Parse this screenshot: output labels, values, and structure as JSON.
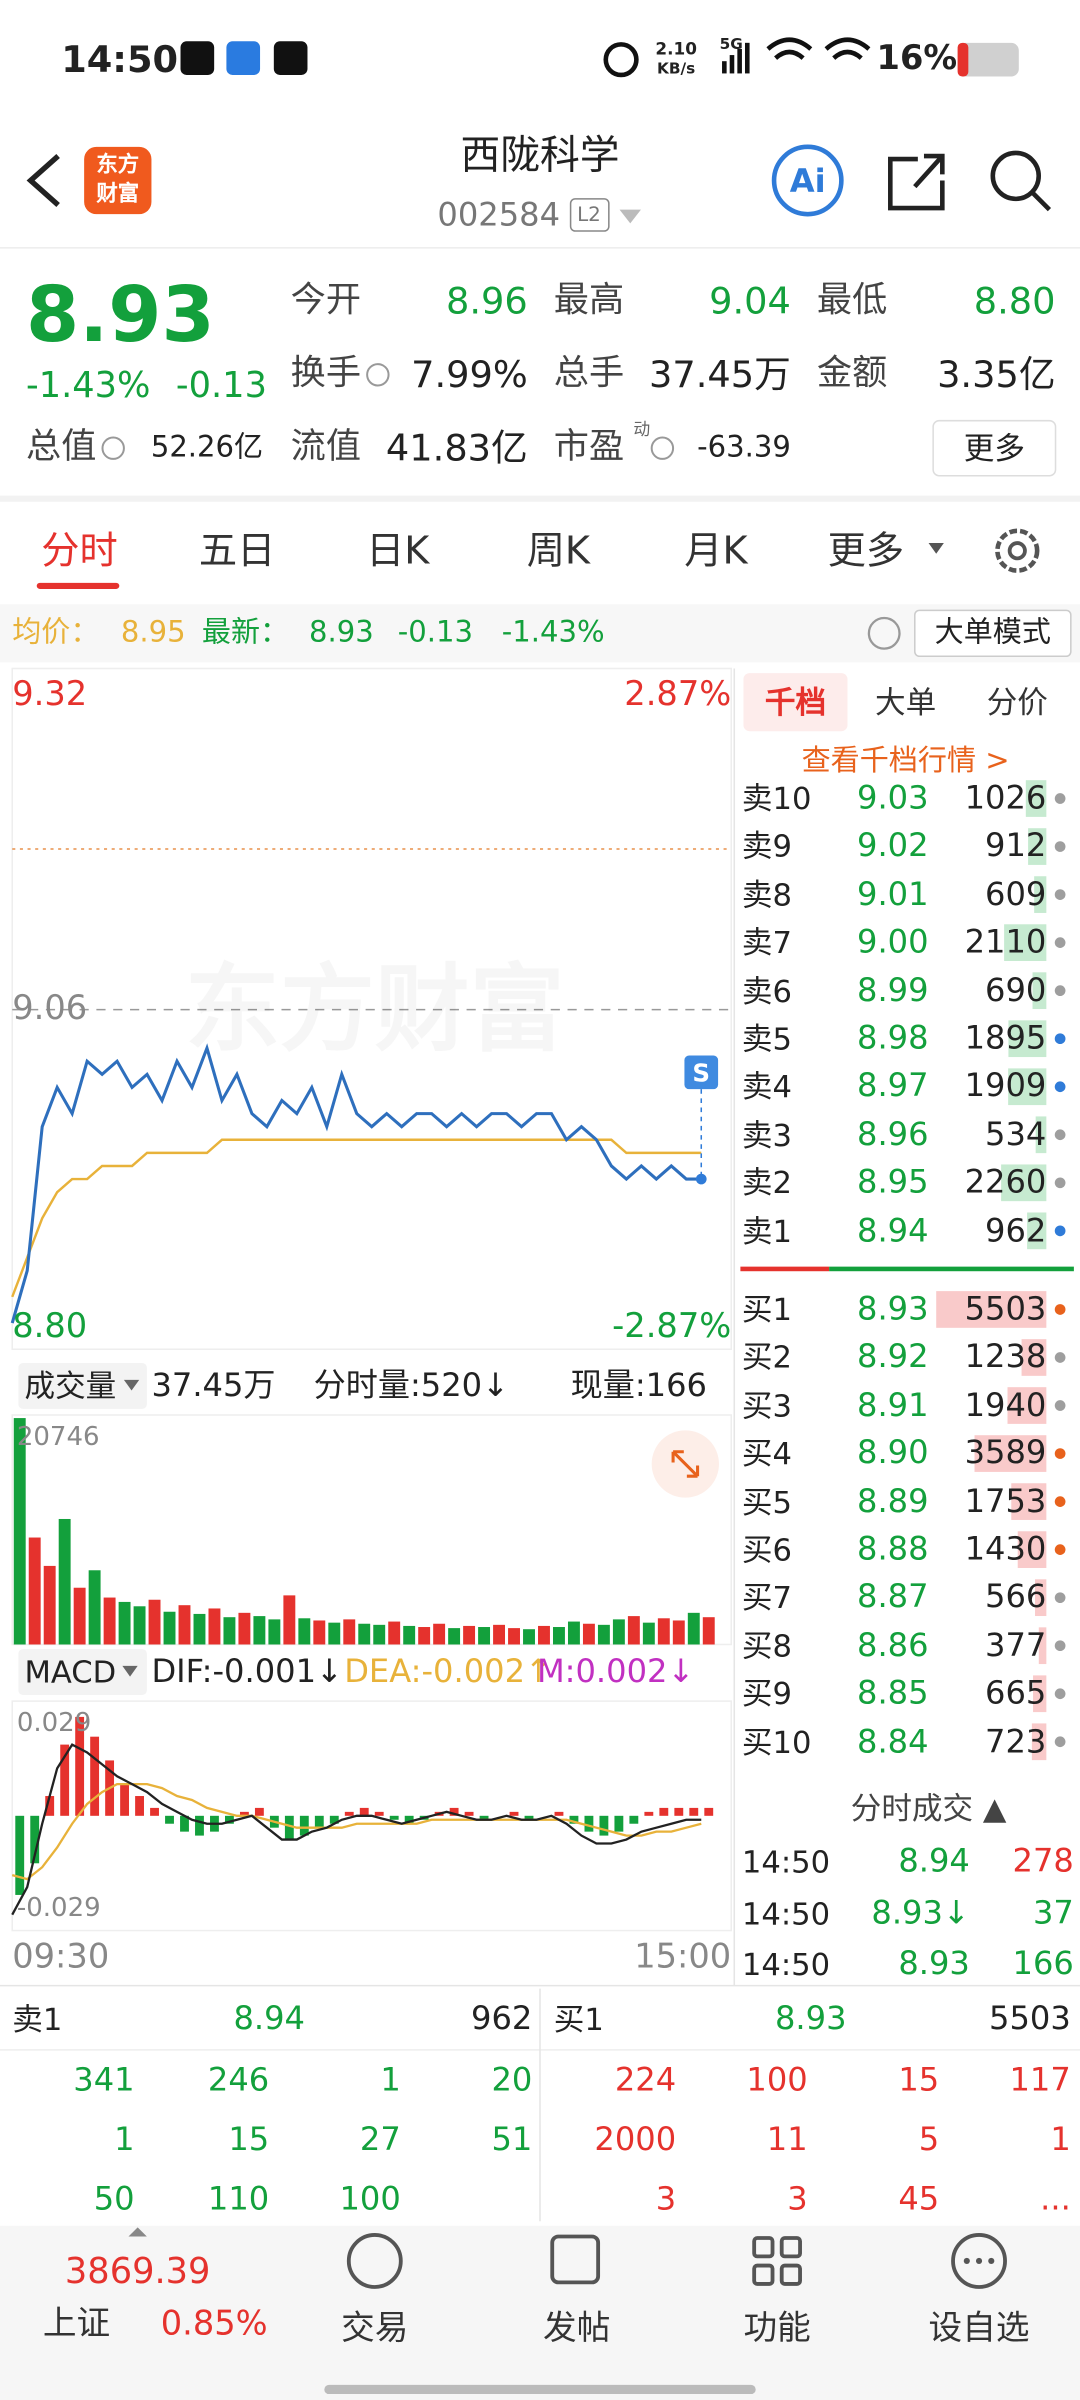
{
  "status_bar": {
    "time": "14:50",
    "net_speed": "2.10",
    "net_unit": "KB/s",
    "network": "5G",
    "battery": "16%"
  },
  "header": {
    "logo": [
      "东方",
      "财富"
    ],
    "title": "西陇科学",
    "code": "002584",
    "level": "L2",
    "ai": "Ai"
  },
  "colors": {
    "up": "#e5322d",
    "down": "#13a03c",
    "text": "#222222",
    "avg": "#e8b23a",
    "line": "#2e6fbd"
  },
  "quote": {
    "price": "8.93",
    "change_pct": "-1.43%",
    "change": "-0.13",
    "more": "更多",
    "stats": [
      {
        "label": "今开",
        "value": "8.96",
        "color": "down"
      },
      {
        "label": "最高",
        "value": "9.04",
        "color": "down"
      },
      {
        "label": "最低",
        "value": "8.80",
        "color": "down"
      },
      {
        "label": "换手",
        "value": "7.99%",
        "color": "text"
      },
      {
        "label": "总手",
        "value": "37.45万",
        "color": "text"
      },
      {
        "label": "金额",
        "value": "3.35亿",
        "color": "text"
      },
      {
        "label": "总值",
        "value": "52.26亿",
        "color": "text"
      },
      {
        "label": "流值",
        "value": "41.83亿",
        "color": "text"
      },
      {
        "label": "市盈",
        "sup": "动",
        "value": "-63.39",
        "color": "text"
      }
    ]
  },
  "tabs": {
    "items": [
      "分时",
      "五日",
      "日K",
      "周K",
      "月K",
      "更多"
    ],
    "active": 0
  },
  "info_bar": {
    "avg_label": "均价：",
    "avg": "8.95",
    "latest_label": "最新：",
    "latest": "8.93",
    "change": "-0.13",
    "change_pct": "-1.43%",
    "mode": "大单模式"
  },
  "intraday": {
    "watermark": "东方财富",
    "top": "9.32",
    "top_pct": "2.87%",
    "mid": "9.06",
    "bottom": "8.80",
    "bottom_pct": "-2.87%",
    "marker": "S",
    "start_time": "09:30",
    "end_time": "15:00",
    "prices": [
      8.82,
      8.86,
      8.97,
      9.0,
      8.98,
      9.02,
      9.01,
      9.02,
      9.0,
      9.01,
      8.99,
      9.02,
      9.0,
      9.03,
      8.99,
      9.01,
      8.98,
      8.97,
      8.99,
      8.98,
      9.0,
      8.97,
      9.01,
      8.98,
      8.97,
      8.98,
      8.97,
      8.98,
      8.98,
      8.97,
      8.98,
      8.97,
      8.98,
      8.98,
      8.97,
      8.98,
      8.98,
      8.96,
      8.97,
      8.96,
      8.94,
      8.93,
      8.94,
      8.93,
      8.94,
      8.93,
      8.93
    ],
    "avg": [
      8.84,
      8.87,
      8.9,
      8.92,
      8.93,
      8.93,
      8.94,
      8.94,
      8.94,
      8.95,
      8.95,
      8.95,
      8.95,
      8.95,
      8.96,
      8.96,
      8.96,
      8.96,
      8.96,
      8.96,
      8.96,
      8.96,
      8.96,
      8.96,
      8.96,
      8.96,
      8.96,
      8.96,
      8.96,
      8.96,
      8.96,
      8.96,
      8.96,
      8.96,
      8.96,
      8.96,
      8.96,
      8.96,
      8.96,
      8.96,
      8.96,
      8.95,
      8.95,
      8.95,
      8.95,
      8.95,
      8.95
    ]
  },
  "volume": {
    "label": "成交量",
    "total": "37.45万",
    "minute": "分时量:520↓",
    "current": "现量:166",
    "max": "20746",
    "values": [
      20746,
      9800,
      7200,
      11500,
      5200,
      6800,
      4300,
      3900,
      3500,
      4100,
      3000,
      3600,
      2800,
      3300,
      2500,
      2900,
      2600,
      2300,
      4500,
      2400,
      2200,
      2000,
      2300,
      1900,
      1800,
      2100,
      1700,
      1600,
      1900,
      1500,
      1700,
      1600,
      1800,
      1500,
      1400,
      1700,
      1600,
      2100,
      1900,
      1800,
      2300,
      2600,
      2000,
      2400,
      2200,
      2900,
      2500
    ],
    "dir": [
      "down",
      "up",
      "up",
      "down",
      "up",
      "down",
      "up",
      "down",
      "down",
      "up",
      "down",
      "up",
      "down",
      "up",
      "down",
      "up",
      "down",
      "down",
      "up",
      "down",
      "up",
      "down",
      "up",
      "down",
      "down",
      "up",
      "down",
      "up",
      "up",
      "down",
      "up",
      "down",
      "up",
      "up",
      "down",
      "up",
      "down",
      "down",
      "up",
      "down",
      "down",
      "up",
      "down",
      "up",
      "up",
      "down",
      "up"
    ]
  },
  "macd": {
    "label": "MACD",
    "dif": "DIF:-0.001↓",
    "dea": "DEA:-0.002↑",
    "m": "M:0.002↓",
    "top": "0.029",
    "bottom": "-0.029",
    "hist": [
      -0.02,
      -0.012,
      0.005,
      0.018,
      0.025,
      0.02,
      0.014,
      0.008,
      0.005,
      0.002,
      -0.002,
      -0.004,
      -0.005,
      -0.004,
      -0.002,
      0.001,
      0.002,
      -0.003,
      -0.006,
      -0.005,
      -0.003,
      -0.002,
      0.001,
      0.002,
      0.001,
      -0.001,
      -0.002,
      -0.001,
      0.001,
      0.002,
      0.001,
      -0.001,
      0.0,
      0.001,
      -0.001,
      0.0,
      0.001,
      -0.002,
      -0.004,
      -0.005,
      -0.004,
      -0.002,
      0.001,
      0.002,
      0.002,
      0.002,
      0.002
    ],
    "dif_line": [
      -0.025,
      -0.018,
      -0.002,
      0.012,
      0.018,
      0.016,
      0.013,
      0.01,
      0.008,
      0.006,
      0.003,
      0.001,
      -0.001,
      -0.002,
      -0.002,
      -0.001,
      0.0,
      -0.003,
      -0.006,
      -0.006,
      -0.004,
      -0.003,
      -0.001,
      0.0,
      0.0,
      -0.001,
      -0.002,
      -0.001,
      0.0,
      0.001,
      0.0,
      -0.001,
      -0.001,
      0.0,
      -0.001,
      -0.001,
      0.0,
      -0.002,
      -0.005,
      -0.007,
      -0.007,
      -0.006,
      -0.004,
      -0.003,
      -0.002,
      -0.001,
      -0.001
    ],
    "dea_line": [
      -0.015,
      -0.016,
      -0.013,
      -0.008,
      -0.002,
      0.003,
      0.006,
      0.008,
      0.008,
      0.008,
      0.007,
      0.005,
      0.004,
      0.002,
      0.001,
      0.0,
      0.0,
      -0.001,
      -0.002,
      -0.003,
      -0.003,
      -0.003,
      -0.003,
      -0.002,
      -0.002,
      -0.002,
      -0.002,
      -0.002,
      -0.001,
      -0.001,
      -0.001,
      -0.001,
      -0.001,
      -0.001,
      -0.001,
      -0.001,
      -0.001,
      -0.001,
      -0.002,
      -0.003,
      -0.004,
      -0.005,
      -0.005,
      -0.004,
      -0.004,
      -0.003,
      -0.002
    ]
  },
  "order_book": {
    "tabs": [
      "千档",
      "大单",
      "分价"
    ],
    "active": 0,
    "link": "查看千档行情 >",
    "asks": [
      {
        "label": "卖10",
        "price": "9.03",
        "volume": "1026",
        "dot": "#9e9e9e"
      },
      {
        "label": "卖9",
        "price": "9.02",
        "volume": "912",
        "dot": "#9e9e9e"
      },
      {
        "label": "卖8",
        "price": "9.01",
        "volume": "609",
        "dot": "#9e9e9e"
      },
      {
        "label": "卖7",
        "price": "9.00",
        "volume": "2110",
        "dot": "#9e9e9e"
      },
      {
        "label": "卖6",
        "price": "8.99",
        "volume": "690",
        "dot": "#9e9e9e"
      },
      {
        "label": "卖5",
        "price": "8.98",
        "volume": "1895",
        "dot": "#2f7bd8"
      },
      {
        "label": "卖4",
        "price": "8.97",
        "volume": "1909",
        "dot": "#2f7bd8"
      },
      {
        "label": "卖3",
        "price": "8.96",
        "volume": "534",
        "dot": "#9e9e9e"
      },
      {
        "label": "卖2",
        "price": "8.95",
        "volume": "2260",
        "dot": "#9e9e9e"
      },
      {
        "label": "卖1",
        "price": "8.94",
        "volume": "962",
        "dot": "#2f7bd8"
      }
    ],
    "bids": [
      {
        "label": "买1",
        "price": "8.93",
        "volume": "5503",
        "dot": "#e8621c"
      },
      {
        "label": "买2",
        "price": "8.92",
        "volume": "1238",
        "dot": "#9e9e9e"
      },
      {
        "label": "买3",
        "price": "8.91",
        "volume": "1940",
        "dot": "#9e9e9e"
      },
      {
        "label": "买4",
        "price": "8.90",
        "volume": "3589",
        "dot": "#e8621c"
      },
      {
        "label": "买5",
        "price": "8.89",
        "volume": "1753",
        "dot": "#e8621c"
      },
      {
        "label": "买6",
        "price": "8.88",
        "volume": "1430",
        "dot": "#e8621c"
      },
      {
        "label": "买7",
        "price": "8.87",
        "volume": "566",
        "dot": "#9e9e9e"
      },
      {
        "label": "买8",
        "price": "8.86",
        "volume": "377",
        "dot": "#9e9e9e"
      },
      {
        "label": "买9",
        "price": "8.85",
        "volume": "665",
        "dot": "#9e9e9e"
      },
      {
        "label": "买10",
        "price": "8.84",
        "volume": "723",
        "dot": "#9e9e9e"
      }
    ]
  },
  "trades": {
    "title": "分时成交 ▲",
    "rows": [
      {
        "time": "14:50",
        "price": "8.94",
        "volume": "278",
        "volume_color": "up"
      },
      {
        "time": "14:50",
        "price": "8.93↓",
        "volume": "37",
        "volume_color": "down"
      },
      {
        "time": "14:50",
        "price": "8.93",
        "volume": "166",
        "volume_color": "down"
      }
    ]
  },
  "queue": {
    "ask": {
      "label": "卖1",
      "price": "8.94",
      "volume": "962",
      "orders": [
        "341",
        "246",
        "1",
        "20",
        "1",
        "15",
        "27",
        "51",
        "50",
        "110",
        "100"
      ]
    },
    "bid": {
      "label": "买1",
      "price": "8.93",
      "volume": "5503",
      "orders": [
        "224",
        "100",
        "15",
        "117",
        "2000",
        "11",
        "5",
        "1",
        "3",
        "3",
        "45",
        "..."
      ]
    }
  },
  "nav": {
    "index_value": "3869.39",
    "index_name": "上证",
    "index_change": "0.85%",
    "items": [
      "交易",
      "发帖",
      "功能",
      "设自选"
    ]
  }
}
